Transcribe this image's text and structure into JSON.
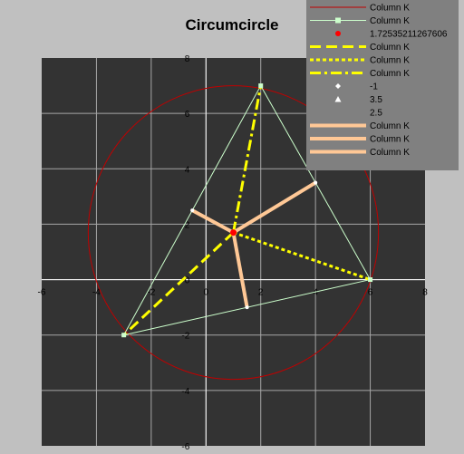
{
  "chart_data": {
    "type": "scatter",
    "title": "Circumcircle",
    "xlabel": "",
    "ylabel": "",
    "xlim": [
      -6,
      8
    ],
    "ylim": [
      -6,
      8
    ],
    "xticks": [
      -6,
      -4,
      -2,
      0,
      2,
      4,
      6,
      8
    ],
    "yticks": [
      -6,
      -4,
      -2,
      0,
      2,
      4,
      6,
      8
    ],
    "grid": true,
    "legend_position": "top-right",
    "colors": {
      "background": "#c0c0c0",
      "plot_area": "#333333",
      "grid": "#a6a6a6",
      "legend_bg": "#808080",
      "circle": "#c00000",
      "triangle": "#ccffcc",
      "center": "#ff0000",
      "median": "#ffff00",
      "perpendicular": "#ffc896",
      "marker": "#ffffff"
    },
    "circumcenter": {
      "x": 1,
      "y": 1.7
    },
    "radius": 5.3,
    "vertices": [
      {
        "x": -3,
        "y": -2
      },
      {
        "x": 6,
        "y": 0
      },
      {
        "x": 2,
        "y": 7
      }
    ],
    "midpoints": [
      {
        "x": 1.5,
        "y": -1
      },
      {
        "x": 4,
        "y": 3.5
      },
      {
        "x": -0.5,
        "y": 2.5
      }
    ],
    "series": [
      {
        "name": "Column K",
        "kind": "circle"
      },
      {
        "name": "Column K",
        "kind": "triangle"
      },
      {
        "name": "1.72535211267606",
        "kind": "center"
      },
      {
        "name": "Column K",
        "kind": "dash",
        "to_vertex": 0
      },
      {
        "name": "Column K",
        "kind": "dot",
        "to_vertex": 1
      },
      {
        "name": "Column K",
        "kind": "dashdot",
        "to_vertex": 2
      },
      {
        "name": "-1",
        "kind": "marker-diamond"
      },
      {
        "name": "3.5",
        "kind": "marker-triangle"
      },
      {
        "name": "2.5",
        "kind": "none"
      },
      {
        "name": "Column K",
        "kind": "perp",
        "to_midpoint": 0
      },
      {
        "name": "Column K",
        "kind": "perp",
        "to_midpoint": 1
      },
      {
        "name": "Column K",
        "kind": "perp",
        "to_midpoint": 2
      }
    ]
  }
}
